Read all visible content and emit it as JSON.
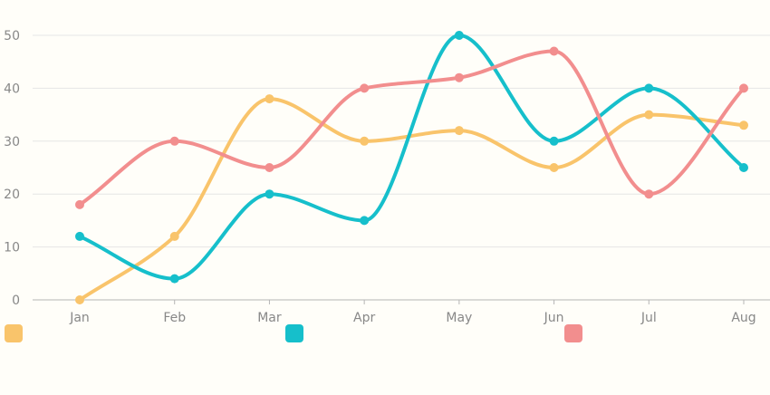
{
  "chart_data": {
    "type": "line",
    "smooth": true,
    "categories": [
      "Jan",
      "Feb",
      "Mar",
      "Apr",
      "May",
      "Jun",
      "Jul",
      "Aug"
    ],
    "ylim": [
      0,
      50
    ],
    "yticks": [
      0,
      10,
      20,
      30,
      40,
      50
    ],
    "grid": true,
    "legend_placement": "bottom",
    "series": [
      {
        "color": "#f9c46b",
        "values": [
          0,
          12,
          38,
          30,
          32,
          25,
          35,
          33
        ]
      },
      {
        "color": "#16bfcb",
        "values": [
          12,
          4,
          20,
          15,
          50,
          30,
          40,
          25
        ]
      },
      {
        "color": "#f28e8e",
        "values": [
          18,
          30,
          25,
          40,
          42,
          47,
          20,
          40
        ]
      }
    ]
  },
  "colors": {
    "background": "#fffef9",
    "grid": "#e6e6e6",
    "axis": "#b5b5b5",
    "tick_text": "#888888"
  }
}
